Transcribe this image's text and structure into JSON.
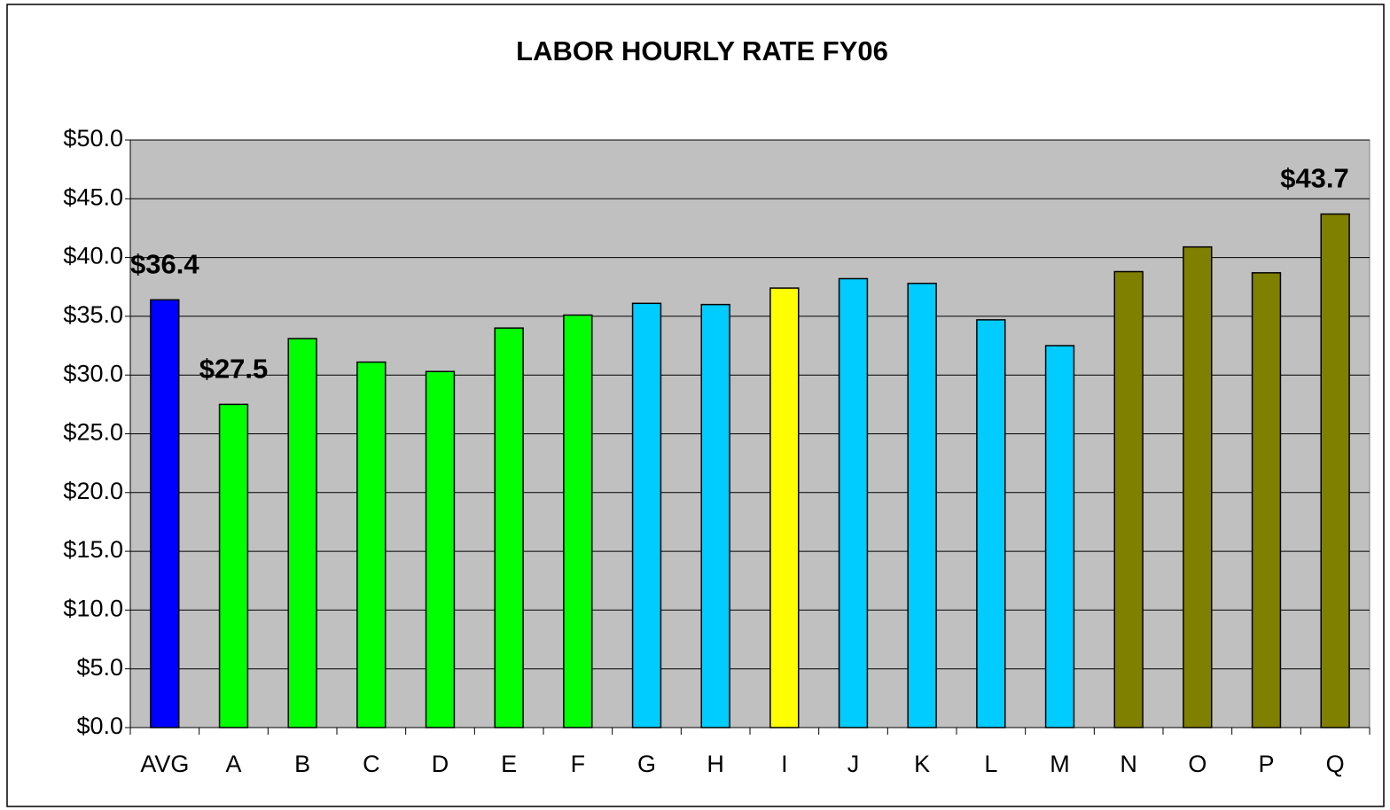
{
  "chart_data": {
    "type": "bar",
    "title": "LABOR HOURLY RATE FY06",
    "categories": [
      "AVG",
      "A",
      "B",
      "C",
      "D",
      "E",
      "F",
      "G",
      "H",
      "I",
      "J",
      "K",
      "L",
      "M",
      "N",
      "O",
      "P",
      "Q"
    ],
    "values": [
      36.4,
      27.5,
      33.1,
      31.1,
      30.3,
      34.0,
      35.1,
      36.1,
      36.0,
      37.4,
      38.2,
      37.8,
      34.7,
      32.5,
      38.8,
      40.9,
      38.7,
      43.7
    ],
    "value_labels": [
      "$36.4",
      "$27.5",
      null,
      null,
      null,
      null,
      null,
      null,
      null,
      null,
      null,
      null,
      null,
      null,
      null,
      null,
      null,
      "$43.7"
    ],
    "colors": [
      "#0000ff",
      "#00ff00",
      "#00ff00",
      "#00ff00",
      "#00ff00",
      "#00ff00",
      "#00ff00",
      "#00ccff",
      "#00ccff",
      "#ffff00",
      "#00ccff",
      "#00ccff",
      "#00ccff",
      "#00ccff",
      "#808000",
      "#808000",
      "#808000",
      "#808000"
    ],
    "ylim": [
      0,
      50
    ],
    "yticks": [
      {
        "value": 0,
        "label": "$0.0"
      },
      {
        "value": 5,
        "label": "$5.0"
      },
      {
        "value": 10,
        "label": "$10.0"
      },
      {
        "value": 15,
        "label": "$15.0"
      },
      {
        "value": 20,
        "label": "$20.0"
      },
      {
        "value": 25,
        "label": "$25.0"
      },
      {
        "value": 30,
        "label": "$30.0"
      },
      {
        "value": 35,
        "label": "$35.0"
      },
      {
        "value": 40,
        "label": "$40.0"
      },
      {
        "value": 45,
        "label": "$45.0"
      },
      {
        "value": 50,
        "label": "$50.0"
      }
    ],
    "grid": true
  }
}
